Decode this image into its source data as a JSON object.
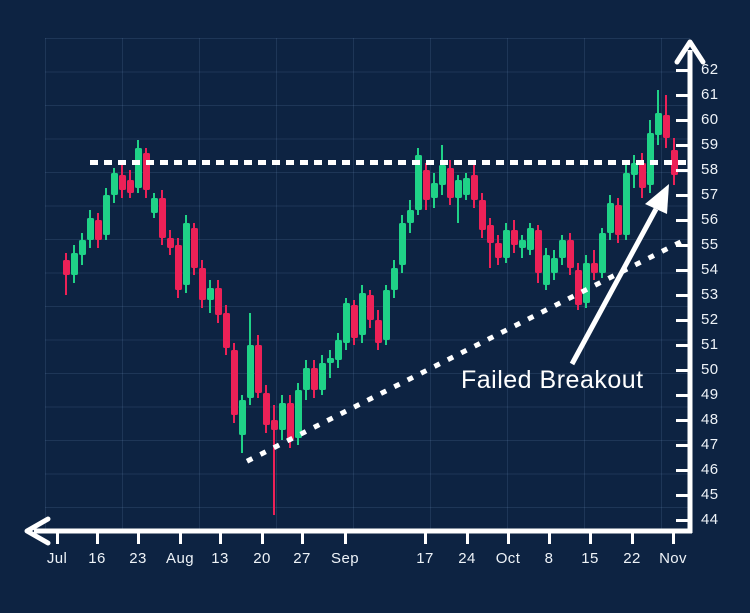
{
  "chart_data": {
    "type": "candlestick",
    "annotation": {
      "text": "Failed Breakout"
    },
    "colors": {
      "bullish": "#1fd287",
      "bearish": "#ec2157",
      "background": "#0d2342",
      "axis": "#ffffff",
      "label": "#eef3f8"
    },
    "y_axis": {
      "min": 44,
      "max": 62,
      "ticks": [
        62,
        61,
        60,
        59,
        58,
        57,
        56,
        55,
        54,
        53,
        52,
        51,
        50,
        49,
        48,
        47,
        46,
        45,
        44
      ]
    },
    "x_axis": {
      "labels": [
        "Jul",
        "16",
        "23",
        "Aug",
        "13",
        "20",
        "27",
        "Sep",
        "17",
        "24",
        "Oct",
        "8",
        "15",
        "22",
        "Nov"
      ]
    },
    "resistance_line": {
      "price": 58.3,
      "style": "dotted"
    },
    "trendline": {
      "start_price": 46.35,
      "end_price": 55.25,
      "style": "dotted"
    },
    "candles": [
      [
        54.4,
        54.7,
        53.0,
        53.8
      ],
      [
        53.8,
        55.0,
        53.5,
        54.7
      ],
      [
        54.6,
        55.5,
        54.2,
        55.2
      ],
      [
        55.2,
        56.4,
        54.9,
        56.1
      ],
      [
        56.0,
        56.3,
        54.9,
        55.2
      ],
      [
        55.4,
        57.3,
        55.2,
        57.0
      ],
      [
        57.0,
        58.1,
        56.7,
        57.9
      ],
      [
        57.8,
        58.2,
        56.9,
        57.2
      ],
      [
        57.6,
        58.0,
        56.9,
        57.1
      ],
      [
        57.3,
        59.2,
        57.1,
        58.9
      ],
      [
        58.7,
        58.9,
        56.9,
        57.2
      ],
      [
        56.3,
        57.1,
        56.1,
        56.9
      ],
      [
        56.9,
        57.2,
        55.0,
        55.3
      ],
      [
        55.3,
        55.6,
        54.6,
        54.9
      ],
      [
        55.0,
        55.3,
        52.9,
        53.2
      ],
      [
        53.4,
        56.2,
        53.1,
        55.9
      ],
      [
        55.7,
        55.9,
        53.8,
        54.1
      ],
      [
        54.1,
        54.4,
        52.5,
        52.8
      ],
      [
        52.8,
        53.6,
        52.3,
        53.3
      ],
      [
        53.3,
        53.6,
        51.9,
        52.2
      ],
      [
        52.3,
        52.6,
        50.6,
        50.9
      ],
      [
        50.8,
        51.1,
        47.9,
        48.2
      ],
      [
        47.4,
        49.0,
        46.7,
        48.8
      ],
      [
        48.9,
        52.3,
        48.6,
        51.0
      ],
      [
        51.0,
        51.4,
        48.9,
        49.1
      ],
      [
        49.1,
        49.4,
        47.5,
        47.8
      ],
      [
        48.0,
        48.6,
        44.2,
        47.6
      ],
      [
        47.6,
        49.0,
        47.2,
        48.7
      ],
      [
        48.7,
        49.0,
        46.9,
        47.2
      ],
      [
        47.3,
        49.5,
        47.0,
        49.2
      ],
      [
        49.2,
        50.4,
        48.8,
        50.1
      ],
      [
        50.1,
        50.4,
        48.9,
        49.2
      ],
      [
        49.2,
        50.6,
        49.0,
        50.3
      ],
      [
        50.3,
        50.8,
        49.7,
        50.5
      ],
      [
        50.4,
        51.5,
        50.1,
        51.2
      ],
      [
        51.1,
        52.9,
        50.8,
        52.7
      ],
      [
        52.6,
        52.8,
        51.0,
        51.3
      ],
      [
        51.4,
        53.4,
        51.1,
        53.1
      ],
      [
        53.0,
        53.2,
        51.7,
        52.0
      ],
      [
        52.0,
        52.4,
        50.8,
        51.1
      ],
      [
        51.2,
        53.4,
        51.0,
        53.2
      ],
      [
        53.2,
        54.4,
        52.9,
        54.1
      ],
      [
        54.2,
        56.2,
        53.9,
        55.9
      ],
      [
        55.9,
        56.8,
        55.5,
        56.4
      ],
      [
        56.4,
        58.9,
        56.2,
        58.6
      ],
      [
        58.0,
        58.3,
        56.4,
        56.8
      ],
      [
        56.9,
        57.9,
        56.5,
        57.5
      ],
      [
        57.4,
        59.0,
        57.0,
        58.2
      ],
      [
        58.1,
        58.4,
        56.6,
        56.9
      ],
      [
        56.9,
        57.8,
        55.9,
        57.6
      ],
      [
        57.0,
        57.9,
        56.8,
        57.7
      ],
      [
        57.8,
        58.2,
        56.5,
        56.8
      ],
      [
        56.8,
        57.1,
        55.3,
        55.6
      ],
      [
        55.8,
        56.1,
        54.1,
        55.1
      ],
      [
        55.1,
        55.4,
        54.2,
        54.5
      ],
      [
        54.5,
        55.9,
        54.3,
        55.6
      ],
      [
        55.6,
        56.0,
        54.7,
        55.0
      ],
      [
        54.9,
        55.4,
        54.5,
        55.2
      ],
      [
        54.8,
        55.9,
        54.6,
        55.7
      ],
      [
        55.6,
        55.8,
        53.5,
        53.9
      ],
      [
        53.4,
        54.9,
        53.2,
        54.6
      ],
      [
        53.9,
        54.8,
        53.6,
        54.5
      ],
      [
        54.5,
        55.4,
        54.2,
        55.2
      ],
      [
        55.2,
        55.5,
        53.8,
        54.1
      ],
      [
        54.0,
        54.3,
        52.4,
        52.6
      ],
      [
        52.7,
        54.6,
        52.5,
        54.3
      ],
      [
        54.3,
        54.8,
        53.6,
        53.9
      ],
      [
        53.9,
        55.7,
        53.7,
        55.5
      ],
      [
        55.5,
        57.0,
        55.2,
        56.7
      ],
      [
        56.6,
        56.9,
        55.1,
        55.4
      ],
      [
        55.4,
        58.4,
        55.2,
        57.9
      ],
      [
        57.8,
        58.6,
        57.3,
        58.3
      ],
      [
        58.3,
        58.7,
        56.9,
        57.3
      ],
      [
        57.4,
        60.0,
        57.1,
        59.5
      ],
      [
        59.4,
        61.2,
        59.0,
        60.3
      ],
      [
        60.2,
        61.0,
        58.9,
        59.3
      ],
      [
        58.8,
        59.3,
        57.4,
        57.8
      ]
    ]
  }
}
